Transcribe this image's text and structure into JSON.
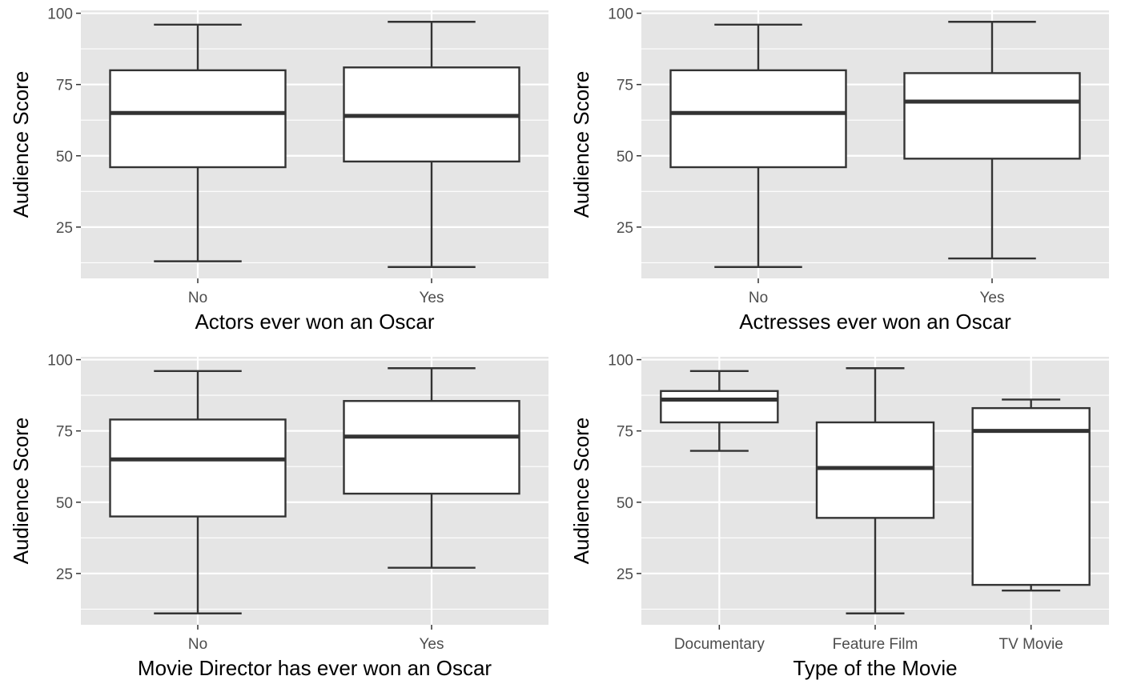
{
  "chart_data": [
    {
      "type": "boxplot",
      "xlabel": "Actors ever won an Oscar",
      "ylabel": "Audience Score",
      "ylim": [
        7,
        101
      ],
      "yticks": [
        25,
        50,
        75,
        100
      ],
      "grid": true,
      "categories": [
        "No",
        "Yes"
      ],
      "boxes": [
        {
          "category": "No",
          "min": 13,
          "q1": 46,
          "median": 65,
          "q3": 80,
          "max": 96
        },
        {
          "category": "Yes",
          "min": 11,
          "q1": 48,
          "median": 64,
          "q3": 81,
          "max": 97
        }
      ]
    },
    {
      "type": "boxplot",
      "xlabel": "Actresses ever won an Oscar",
      "ylabel": "Audience Score",
      "ylim": [
        7,
        101
      ],
      "yticks": [
        25,
        50,
        75,
        100
      ],
      "grid": true,
      "categories": [
        "No",
        "Yes"
      ],
      "boxes": [
        {
          "category": "No",
          "min": 11,
          "q1": 46,
          "median": 65,
          "q3": 80,
          "max": 96
        },
        {
          "category": "Yes",
          "min": 14,
          "q1": 49,
          "median": 69,
          "q3": 79,
          "max": 97
        }
      ]
    },
    {
      "type": "boxplot",
      "xlabel": "Movie Director has ever won an Oscar",
      "ylabel": "Audience Score",
      "ylim": [
        7,
        101
      ],
      "yticks": [
        25,
        50,
        75,
        100
      ],
      "grid": true,
      "categories": [
        "No",
        "Yes"
      ],
      "boxes": [
        {
          "category": "No",
          "min": 11,
          "q1": 45,
          "median": 65,
          "q3": 79,
          "max": 96
        },
        {
          "category": "Yes",
          "min": 27,
          "q1": 53,
          "median": 73,
          "q3": 85.5,
          "max": 97
        }
      ]
    },
    {
      "type": "boxplot",
      "xlabel": "Type of the Movie",
      "ylabel": "Audience Score",
      "ylim": [
        7,
        101
      ],
      "yticks": [
        25,
        50,
        75,
        100
      ],
      "grid": true,
      "categories": [
        "Documentary",
        "Feature Film",
        "TV Movie"
      ],
      "boxes": [
        {
          "category": "Documentary",
          "min": 68,
          "q1": 78,
          "median": 86,
          "q3": 89,
          "max": 96
        },
        {
          "category": "Feature Film",
          "min": 11,
          "q1": 44.5,
          "median": 62,
          "q3": 78,
          "max": 97
        },
        {
          "category": "TV Movie",
          "min": 19,
          "q1": 21,
          "median": 75,
          "q3": 83,
          "max": 86
        }
      ]
    }
  ]
}
